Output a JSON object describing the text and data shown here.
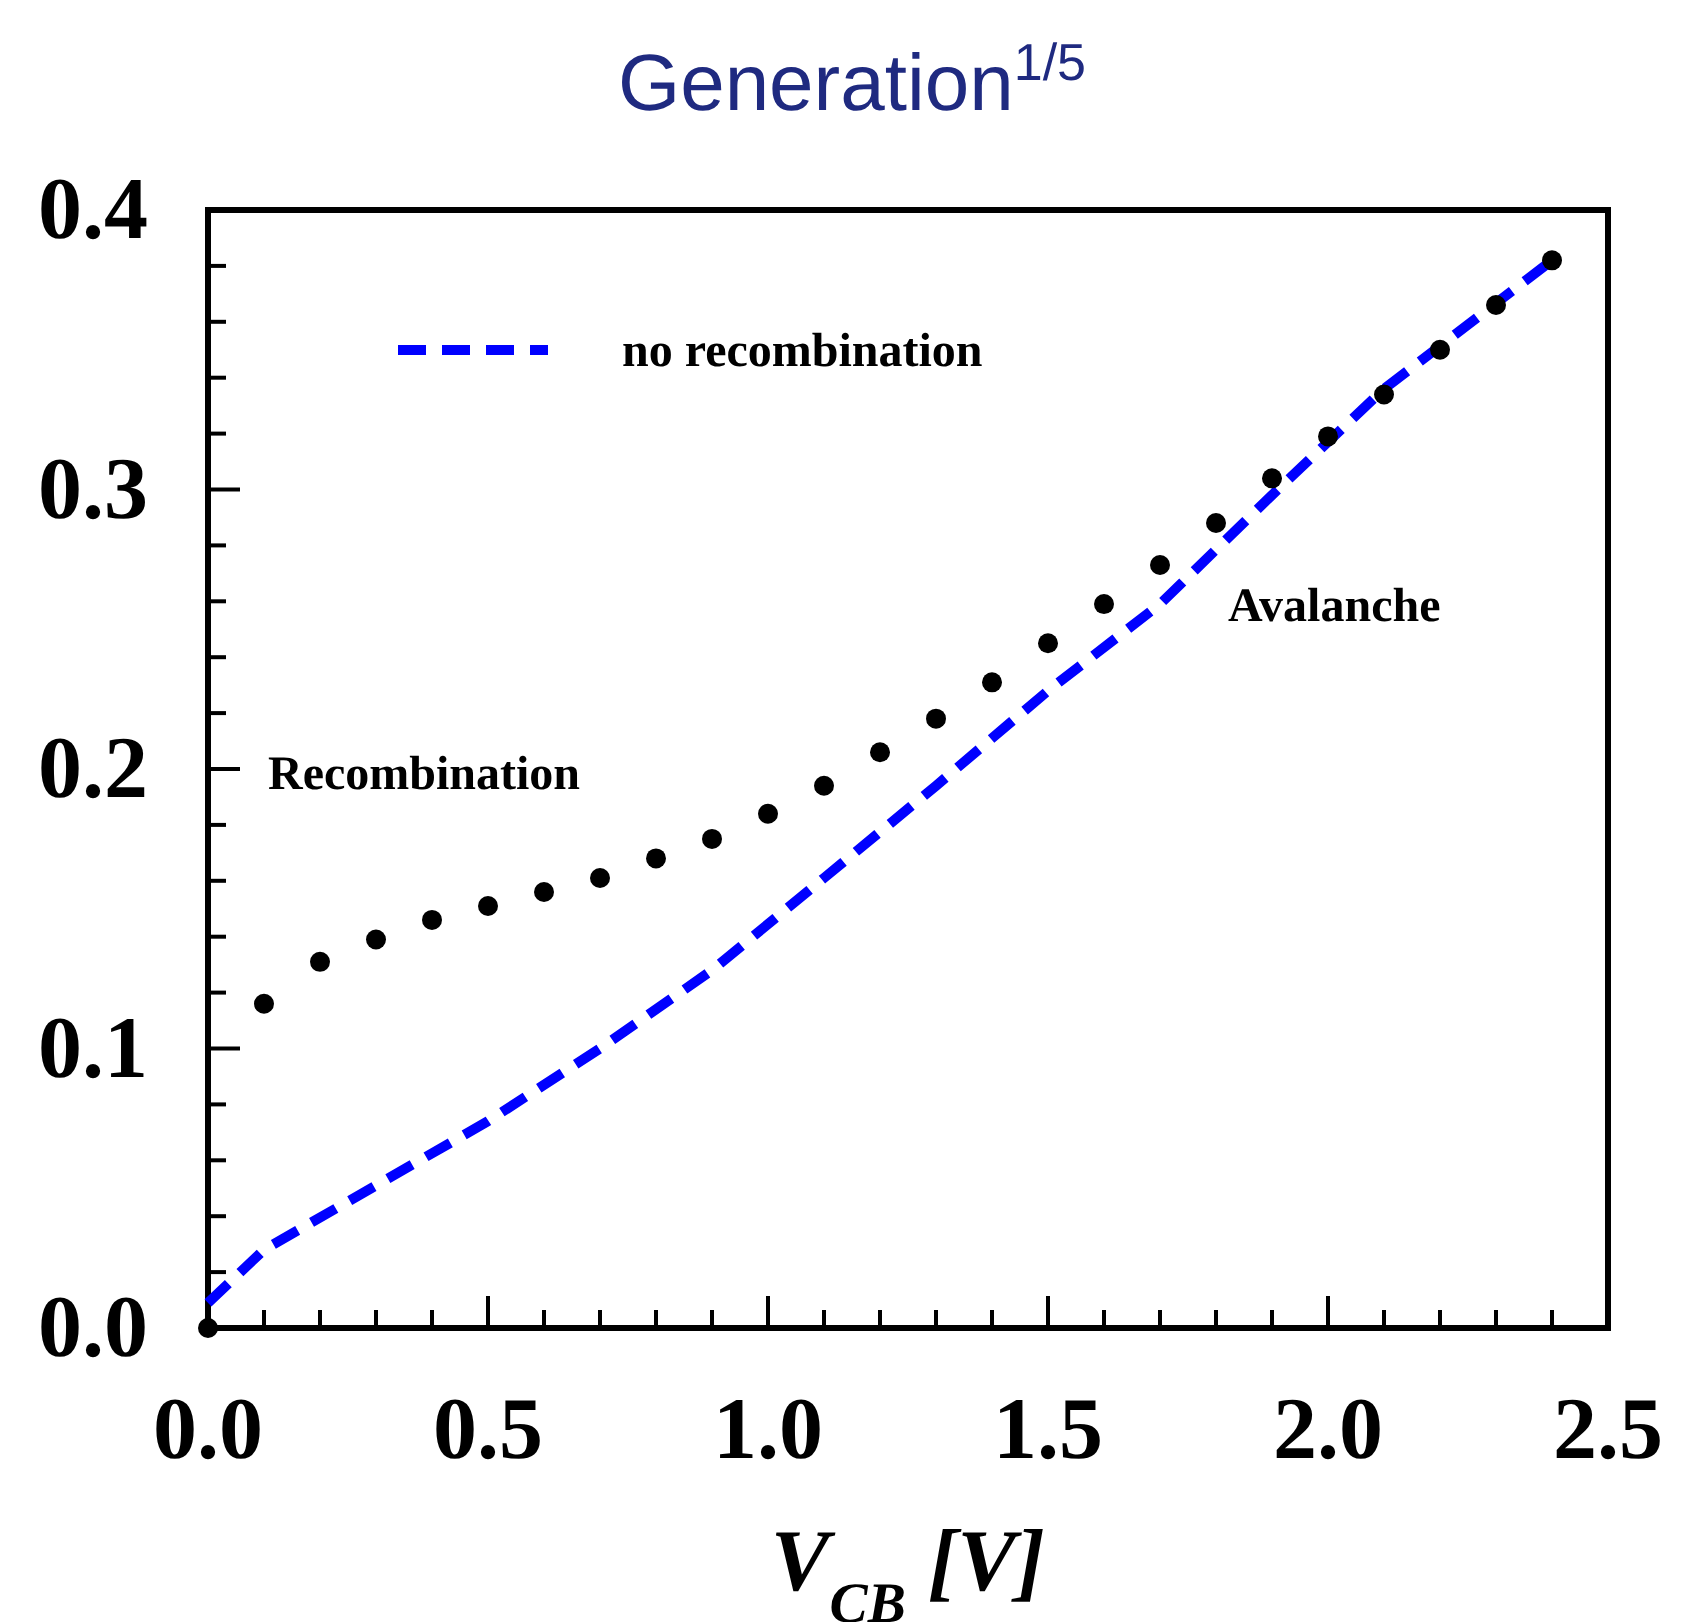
{
  "chart_data": {
    "type": "scatter",
    "title": "Generation$^{1/5}$",
    "xlabel": "V$_{CB}$ [V]",
    "xlim": [
      0,
      2.5
    ],
    "ylim": [
      0,
      0.4
    ],
    "xticks": [
      {
        "value": 0,
        "label": "0.0"
      },
      {
        "value": 0.1,
        "label": null
      },
      {
        "value": 0.2,
        "label": null
      },
      {
        "value": 0.3,
        "label": null
      },
      {
        "value": 0.4,
        "label": null
      },
      0.5,
      {
        "value": 0.6,
        "label": null
      },
      {
        "value": 0.7,
        "label": null
      },
      {
        "value": 0.8,
        "label": null
      },
      {
        "value": 0.9,
        "label": null
      },
      {
        "value": 1,
        "label": "1.0"
      },
      {
        "value": 1.1,
        "label": null
      },
      {
        "value": 1.2,
        "label": null
      },
      {
        "value": 1.3,
        "label": null
      },
      {
        "value": 1.4,
        "label": null
      },
      1.5,
      {
        "value": 1.6,
        "label": null
      },
      {
        "value": 1.7,
        "label": null
      },
      {
        "value": 1.8,
        "label": null
      },
      {
        "value": 1.9,
        "label": null
      },
      {
        "value": 2,
        "label": "2.0"
      },
      {
        "value": 2.1,
        "label": null
      },
      {
        "value": 2.2,
        "label": null
      },
      {
        "value": 2.3,
        "label": null
      },
      {
        "value": 2.4,
        "label": null
      },
      2.5
    ],
    "yticks": [
      {
        "value": 0,
        "label": "0.0"
      },
      {
        "value": 0.02,
        "label": null
      },
      {
        "value": 0.04,
        "label": null
      },
      {
        "value": 0.06,
        "label": null
      },
      {
        "value": 0.08,
        "label": null
      },
      0.1,
      {
        "value": 0.12,
        "label": null
      },
      {
        "value": 0.14,
        "label": null
      },
      {
        "value": 0.16,
        "label": null
      },
      {
        "value": 0.18,
        "label": null
      },
      0.2,
      {
        "value": 0.22,
        "label": null
      },
      {
        "value": 0.24,
        "label": null
      },
      {
        "value": 0.26,
        "label": null
      },
      {
        "value": 0.28,
        "label": null
      },
      0.3,
      {
        "value": 0.32,
        "label": null
      },
      {
        "value": 0.34,
        "label": null
      },
      {
        "value": 0.36,
        "label": null
      },
      {
        "value": 0.38,
        "label": null
      },
      0.4
    ],
    "legend": "top left",
    "series": [
      {
        "color": "#000000",
        "marker": "circle",
        "x": [
          0,
          0.1,
          0.2,
          0.3,
          0.4,
          0.5,
          0.6,
          0.7,
          0.8,
          0.9,
          1.0,
          1.1,
          1.2,
          1.3,
          1.4,
          1.5,
          1.6,
          1.7,
          1.8,
          1.9,
          2.0,
          2.1,
          2.2,
          2.3,
          2.4
        ],
        "values": [
          0,
          0.116,
          0.131,
          0.139,
          0.146,
          0.151,
          0.156,
          0.161,
          0.168,
          0.175,
          0.184,
          0.194,
          0.206,
          0.218,
          0.231,
          0.245,
          0.259,
          0.273,
          0.288,
          0.304,
          0.319,
          0.334,
          0.35,
          0.366,
          0.382
        ]
      },
      {
        "type": "line",
        "name": "no recombination",
        "color": "#0000ff",
        "line_style": "dashed",
        "x": [
          0,
          0.1,
          0.3,
          0.5,
          0.7,
          0.9,
          1.1,
          1.3,
          1.5,
          1.7,
          1.9,
          2.1,
          2.4
        ],
        "values": [
          0.009,
          0.028,
          0.051,
          0.074,
          0.1,
          0.128,
          0.161,
          0.194,
          0.228,
          0.259,
          0.298,
          0.336,
          0.382
        ]
      }
    ],
    "annotations": [
      "Recombination",
      "Avalanche"
    ]
  }
}
